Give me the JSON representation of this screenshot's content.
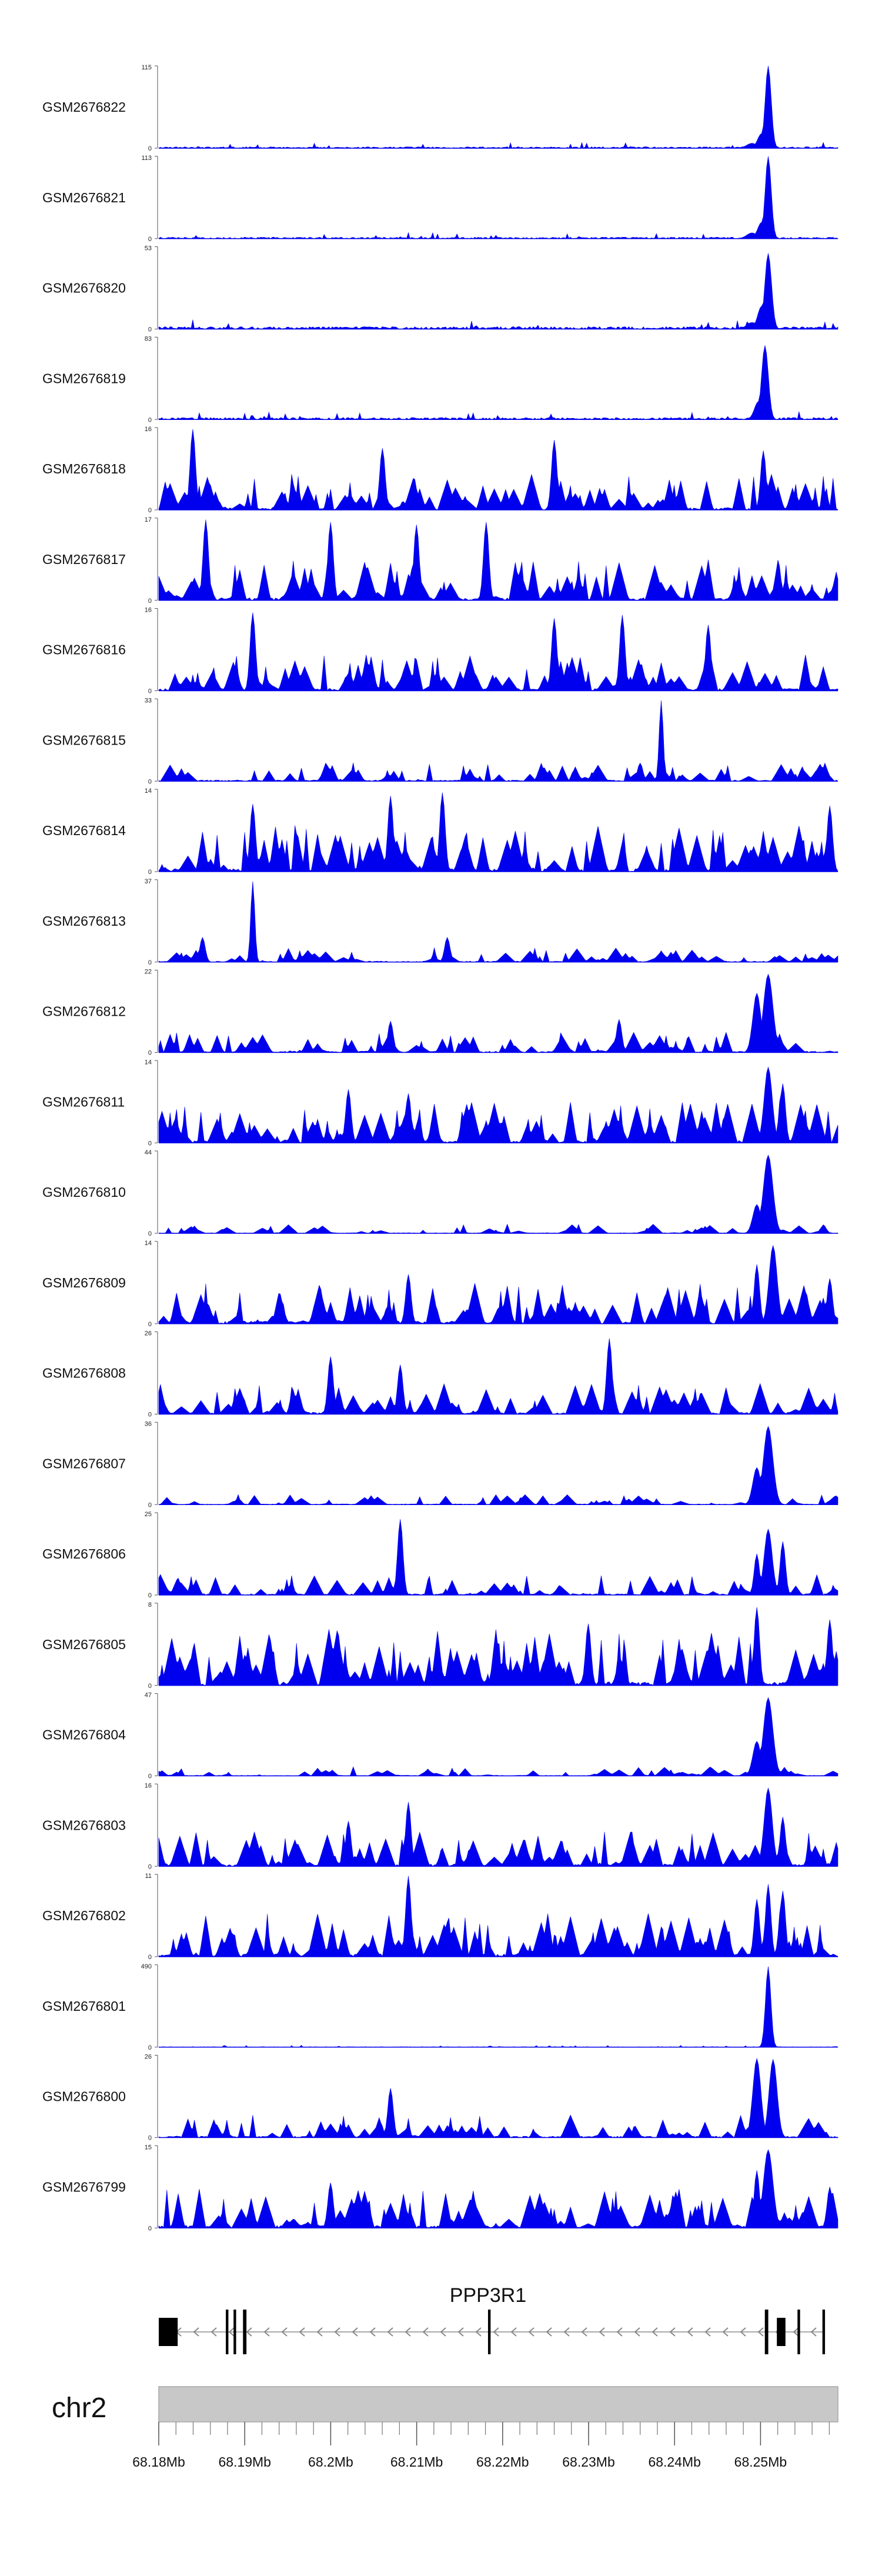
{
  "chart_data": {
    "type": "area",
    "title": "",
    "series_color": "#0000ee",
    "x_range_mb": [
      68.18,
      68.259
    ],
    "tracks": [
      {
        "name": "GSM2676822",
        "ymax": "115",
        "ymin": "0",
        "peak": 115,
        "bg": 0.03,
        "spikes": [
          [
            68.2508,
            1.0,
            0.00045
          ],
          [
            68.2502,
            0.18,
            0.0006
          ],
          [
            68.249,
            0.06,
            0.0008
          ]
        ]
      },
      {
        "name": "GSM2676821",
        "ymax": "113",
        "ymin": "0",
        "peak": 113,
        "bg": 0.03,
        "spikes": [
          [
            68.2508,
            1.0,
            0.00045
          ],
          [
            68.2502,
            0.2,
            0.0006
          ],
          [
            68.249,
            0.07,
            0.0008
          ]
        ]
      },
      {
        "name": "GSM2676820",
        "ymax": "53",
        "ymin": "0",
        "peak": 53,
        "bg": 0.05,
        "spikes": [
          [
            68.2508,
            0.92,
            0.0005
          ],
          [
            68.2502,
            0.28,
            0.0006
          ],
          [
            68.249,
            0.08,
            0.0008
          ]
        ]
      },
      {
        "name": "GSM2676819",
        "ymax": "83",
        "ymin": "0",
        "peak": 83,
        "bg": 0.04,
        "spikes": [
          [
            68.2506,
            0.9,
            0.0005
          ],
          [
            68.2498,
            0.22,
            0.0006
          ]
        ]
      },
      {
        "name": "GSM2676818",
        "ymax": "16",
        "ymin": "0",
        "peak": 16,
        "bg": 0.35,
        "spikes": [
          [
            68.184,
            0.98
          ],
          [
            68.226,
            0.85
          ],
          [
            68.2504,
            0.72
          ],
          [
            68.206,
            0.75
          ]
        ]
      },
      {
        "name": "GSM2676817",
        "ymax": "17",
        "ymin": "0",
        "peak": 17,
        "bg": 0.4,
        "spikes": [
          [
            68.2,
            0.95
          ],
          [
            68.21,
            0.92
          ],
          [
            68.218,
            0.95
          ],
          [
            68.1855,
            0.98
          ]
        ]
      },
      {
        "name": "GSM2676816",
        "ymax": "16",
        "ymin": "0",
        "peak": 16,
        "bg": 0.35,
        "spikes": [
          [
            68.191,
            0.95
          ],
          [
            68.234,
            0.92
          ],
          [
            68.226,
            0.88
          ],
          [
            68.244,
            0.8
          ]
        ]
      },
      {
        "name": "GSM2676815",
        "ymax": "33",
        "ymin": "0",
        "peak": 33,
        "bg": 0.18,
        "spikes": [
          [
            68.2385,
            0.98,
            0.0003
          ],
          [
            68.236,
            0.22
          ]
        ]
      },
      {
        "name": "GSM2676814",
        "ymax": "14",
        "ymin": "0",
        "peak": 14,
        "bg": 0.45,
        "spikes": [
          [
            68.207,
            0.92
          ],
          [
            68.213,
            0.96
          ],
          [
            68.191,
            0.82
          ],
          [
            68.258,
            0.8
          ]
        ]
      },
      {
        "name": "GSM2676813",
        "ymax": "37",
        "ymin": "0",
        "peak": 37,
        "bg": 0.14,
        "spikes": [
          [
            68.191,
            0.98,
            0.0003
          ],
          [
            68.185,
            0.3
          ],
          [
            68.2135,
            0.3
          ]
        ]
      },
      {
        "name": "GSM2676812",
        "ymax": "22",
        "ymin": "0",
        "peak": 22,
        "bg": 0.2,
        "spikes": [
          [
            68.2508,
            0.95,
            0.0007
          ],
          [
            68.2495,
            0.72,
            0.0006
          ],
          [
            68.207,
            0.38
          ],
          [
            68.2335,
            0.4
          ]
        ]
      },
      {
        "name": "GSM2676811",
        "ymax": "14",
        "ymin": "0",
        "peak": 14,
        "bg": 0.4,
        "spikes": [
          [
            68.2508,
            0.92,
            0.0006
          ],
          [
            68.2525,
            0.72
          ],
          [
            68.202,
            0.65
          ],
          [
            68.209,
            0.6
          ]
        ]
      },
      {
        "name": "GSM2676810",
        "ymax": "44",
        "ymin": "0",
        "peak": 44,
        "bg": 0.09,
        "spikes": [
          [
            68.2508,
            0.95,
            0.0007
          ],
          [
            68.2495,
            0.35,
            0.0006
          ]
        ]
      },
      {
        "name": "GSM2676809",
        "ymax": "14",
        "ymin": "0",
        "peak": 14,
        "bg": 0.4,
        "spikes": [
          [
            68.2514,
            0.95,
            0.0006
          ],
          [
            68.2495,
            0.72
          ],
          [
            68.258,
            0.55
          ],
          [
            68.209,
            0.6
          ]
        ]
      },
      {
        "name": "GSM2676808",
        "ymax": "26",
        "ymin": "0",
        "peak": 26,
        "bg": 0.3,
        "spikes": [
          [
            68.2325,
            0.92
          ],
          [
            68.2,
            0.7
          ],
          [
            68.208,
            0.6
          ]
        ]
      },
      {
        "name": "GSM2676807",
        "ymax": "36",
        "ymin": "0",
        "peak": 36,
        "bg": 0.1,
        "spikes": [
          [
            68.2508,
            0.95,
            0.0007
          ],
          [
            68.2495,
            0.45,
            0.0006
          ]
        ]
      },
      {
        "name": "GSM2676806",
        "ymax": "25",
        "ymin": "0",
        "peak": 25,
        "bg": 0.2,
        "spikes": [
          [
            68.208,
            0.92
          ],
          [
            68.2508,
            0.8,
            0.0006
          ],
          [
            68.2525,
            0.65
          ],
          [
            68.2495,
            0.5
          ]
        ]
      },
      {
        "name": "GSM2676805",
        "ymax": "8",
        "ymin": "0",
        "peak": 8,
        "bg": 0.55,
        "spikes": [
          [
            68.2495,
            0.95
          ],
          [
            68.258,
            0.8
          ],
          [
            68.23,
            0.75
          ]
        ]
      },
      {
        "name": "GSM2676804",
        "ymax": "47",
        "ymin": "0",
        "peak": 47,
        "bg": 0.09,
        "spikes": [
          [
            68.2508,
            0.95,
            0.0007
          ],
          [
            68.2495,
            0.42,
            0.0006
          ]
        ]
      },
      {
        "name": "GSM2676803",
        "ymax": "16",
        "ymin": "0",
        "peak": 16,
        "bg": 0.35,
        "spikes": [
          [
            68.2508,
            0.95,
            0.0006
          ],
          [
            68.2525,
            0.6
          ],
          [
            68.209,
            0.78
          ],
          [
            68.202,
            0.55
          ]
        ]
      },
      {
        "name": "GSM2676802",
        "ymax": "11",
        "ymin": "0",
        "peak": 11,
        "bg": 0.42,
        "spikes": [
          [
            68.209,
            0.98
          ],
          [
            68.2508,
            0.88
          ],
          [
            68.2525,
            0.8
          ],
          [
            68.2495,
            0.7
          ]
        ]
      },
      {
        "name": "GSM2676801",
        "ymax": "490",
        "ymin": "0",
        "peak": 490,
        "bg": 0.01,
        "spikes": [
          [
            68.2508,
            0.98,
            0.0004
          ]
        ]
      },
      {
        "name": "GSM2676800",
        "ymax": "26",
        "ymin": "0",
        "peak": 26,
        "bg": 0.22,
        "spikes": [
          [
            68.2495,
            0.96,
            0.0006
          ],
          [
            68.2515,
            0.95,
            0.0006
          ],
          [
            68.207,
            0.6
          ]
        ]
      },
      {
        "name": "GSM2676799",
        "ymax": "15",
        "ymin": "0",
        "peak": 15,
        "bg": 0.38,
        "spikes": [
          [
            68.2508,
            0.95,
            0.0007
          ],
          [
            68.2495,
            0.7
          ],
          [
            68.258,
            0.5
          ],
          [
            68.2,
            0.55
          ]
        ]
      }
    ],
    "gene": {
      "name": "PPP3R1",
      "strand": "-",
      "start_mb": 68.18,
      "end_mb": 68.2575,
      "exons": [
        {
          "start_mb": 68.18,
          "end_mb": 68.1822,
          "tall": true
        },
        {
          "start_mb": 68.1878,
          "end_mb": 68.1881,
          "tall": false
        },
        {
          "start_mb": 68.1887,
          "end_mb": 68.189,
          "tall": false
        },
        {
          "start_mb": 68.1898,
          "end_mb": 68.1902,
          "tall": false
        },
        {
          "start_mb": 68.2183,
          "end_mb": 68.2186,
          "tall": false
        },
        {
          "start_mb": 68.2505,
          "end_mb": 68.2509,
          "tall": false
        },
        {
          "start_mb": 68.2519,
          "end_mb": 68.2529,
          "tall": true
        },
        {
          "start_mb": 68.2543,
          "end_mb": 68.2546,
          "tall": false
        },
        {
          "start_mb": 68.2572,
          "end_mb": 68.2575,
          "tall": false
        }
      ]
    },
    "chromosome": "chr2",
    "x_ticks": [
      "68.18Mb",
      "68.19Mb",
      "68.2Mb",
      "68.21Mb",
      "68.22Mb",
      "68.23Mb",
      "68.24Mb",
      "68.25Mb"
    ],
    "x_tick_values_mb": [
      68.18,
      68.19,
      68.2,
      68.21,
      68.22,
      68.23,
      68.24,
      68.25
    ],
    "minor_tick_step_mb": 0.002
  }
}
